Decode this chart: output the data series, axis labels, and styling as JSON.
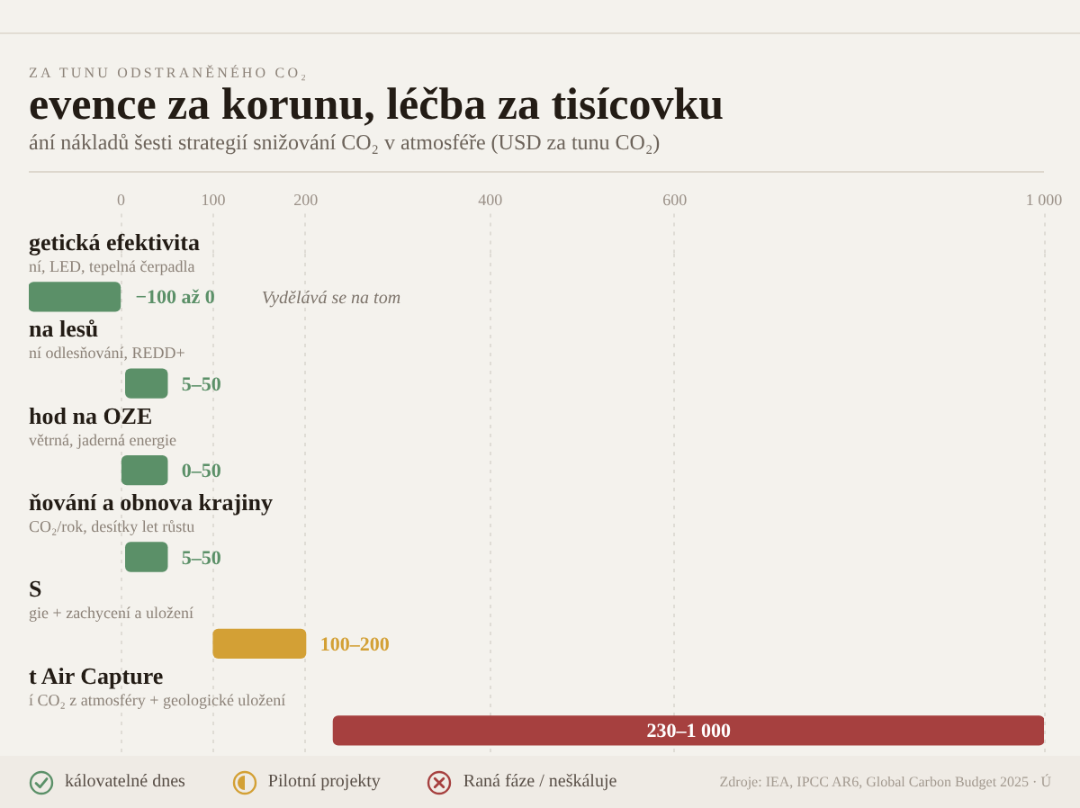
{
  "chart_data": {
    "type": "bar",
    "orientation": "horizontal",
    "title": "evence za korunu, léčba za tisícovku",
    "subtitle": "ání nákladů šesti strategií snižování CO₂ v atmosféře (USD za tunu CO₂)",
    "categories": [
      "getická efektivita",
      "na lesů",
      "hod na OZE",
      "ňování a obnova krajiny",
      "S",
      "t Air Capture"
    ],
    "series": [
      {
        "name": "kálovatelné dnes",
        "color": "#5b9068",
        "base": [
          null,
          5,
          0,
          5,
          null,
          null
        ],
        "values": [
          -100,
          45,
          50,
          45,
          null,
          null
        ],
        "value_labels": [
          "−100 až 0",
          "5–50",
          "0–50",
          "5–50",
          null,
          null
        ]
      },
      {
        "name": "Pilotní projekty",
        "color": "#d3a035",
        "base": [
          null,
          null,
          null,
          null,
          100,
          null
        ],
        "values": [
          null,
          null,
          null,
          null,
          100,
          null
        ],
        "value_labels": [
          null,
          null,
          null,
          null,
          "100–200",
          null
        ]
      },
      {
        "name": "Raná fáze / neškáluje",
        "color": "#a6403f",
        "base": [
          null,
          null,
          null,
          null,
          null,
          230
        ],
        "values": [
          null,
          null,
          null,
          null,
          null,
          770
        ],
        "value_labels": [
          null,
          null,
          null,
          null,
          null,
          "230–1 000"
        ]
      }
    ],
    "xlim": [
      -100,
      1000
    ],
    "xticks": [
      0,
      100,
      200,
      400,
      600,
      {
        "value": 1000,
        "label": "1 000"
      }
    ],
    "grid": "x",
    "legend": "bottom",
    "annotations": [
      "ZA TUNU ODSTRANĚNÉHO CO₂",
      "ní, LED, tepelná čerpadla",
      "ní odlesňování, REDD+",
      "větrná, jaderná energie",
      "CO₂/rok, desítky let růstu",
      "gie + zachycení a uložení",
      "í CO₂ z atmosféry + geologické uložení",
      "Vydělává se na tom",
      "Zdroje: IEA, IPCC AR6, Global Carbon Budget 2025 · Ú"
    ]
  }
}
